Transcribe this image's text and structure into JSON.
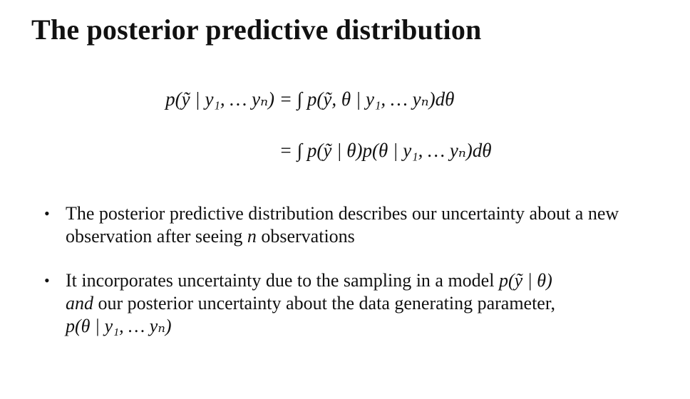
{
  "title": "The posterior predictive distribution",
  "equation": {
    "line1_lhs": "p(ỹ | y₁, … yₙ) =",
    "line1_rhs": "∫ p(ỹ, θ | y₁, … yₙ)dθ",
    "line2_lhs": "=",
    "line2_rhs": "∫ p(ỹ | θ)p(θ | y₁, … yₙ)dθ"
  },
  "bullets": [
    {
      "text_before": "The posterior predictive distribution describes our uncertainty about a new observation after seeing ",
      "math": "n",
      "text_after": " observations"
    },
    {
      "text_before": "It incorporates uncertainty due to the sampling in a model ",
      "math1": "p(ỹ | θ)",
      "emph": "and",
      "text_middle": " our posterior uncertainty about the data generating parameter,",
      "math2": "p(θ | y₁, … yₙ)"
    }
  ]
}
